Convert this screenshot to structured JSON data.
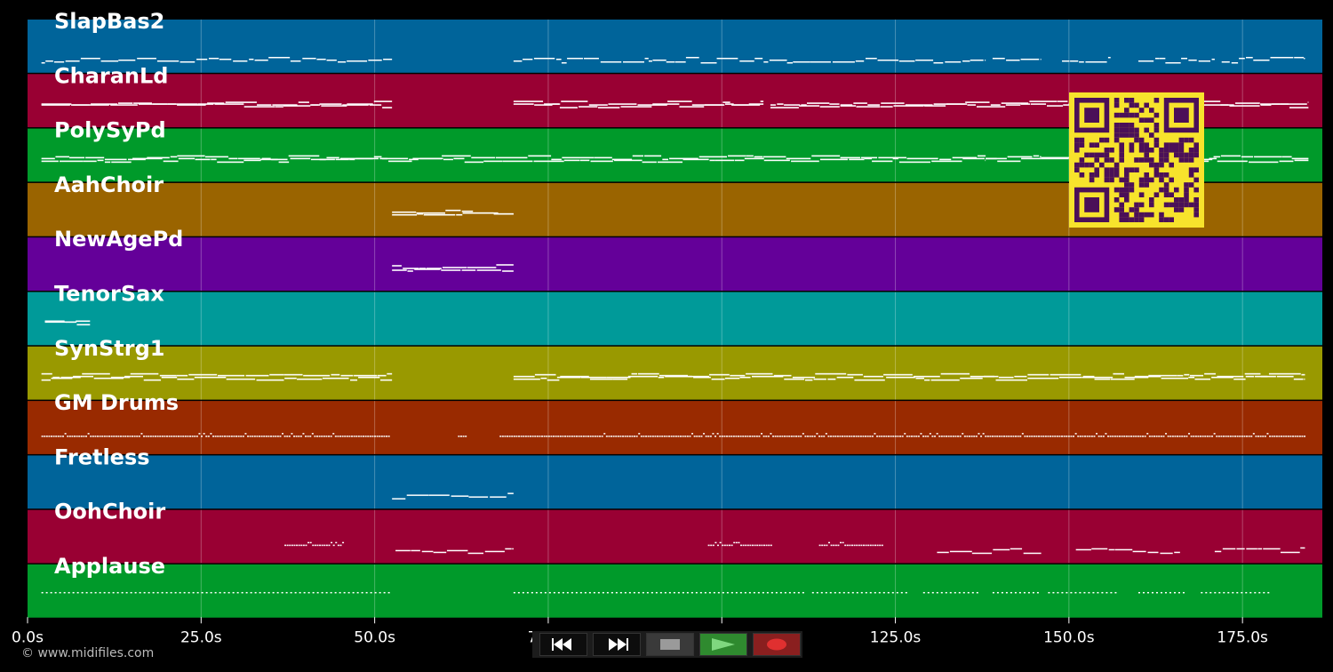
{
  "timeline": {
    "duration_s": 186.5,
    "ticks": [
      {
        "t": 0,
        "label": "0.0s"
      },
      {
        "t": 25,
        "label": "25.0s"
      },
      {
        "t": 50,
        "label": "50.0s"
      },
      {
        "t": 75,
        "label": "75.0s"
      },
      {
        "t": 100,
        "label": "100.0s"
      },
      {
        "t": 125,
        "label": "125.0s"
      },
      {
        "t": 150,
        "label": "150.0s"
      },
      {
        "t": 175,
        "label": "175.0s"
      }
    ]
  },
  "tracks": [
    {
      "name": "SlapBas2",
      "color": "#00649a",
      "segments": [
        [
          2,
          52.5,
          "line"
        ],
        [
          70,
          92,
          "line"
        ],
        [
          92,
          138,
          "line"
        ],
        [
          139,
          146,
          "line"
        ],
        [
          149,
          156,
          "line"
        ],
        [
          160,
          171,
          "line"
        ],
        [
          172,
          184,
          "line"
        ]
      ]
    },
    {
      "name": "CharanLd",
      "color": "#990033",
      "segments": [
        [
          2,
          46,
          "dense"
        ],
        [
          46,
          52.5,
          "dense"
        ],
        [
          70,
          106,
          "dense"
        ],
        [
          107,
          150,
          "dense"
        ],
        [
          150,
          184.5,
          "dense"
        ]
      ]
    },
    {
      "name": "PolySyPd",
      "color": "#009a2a",
      "segments": [
        [
          2,
          138,
          "dense"
        ],
        [
          138,
          146,
          "dense"
        ],
        [
          146,
          184.5,
          "dense"
        ]
      ]
    },
    {
      "name": "AahChoir",
      "color": "#9a6400",
      "segments": [
        [
          52.5,
          70,
          "dense"
        ]
      ]
    },
    {
      "name": "NewAgePd",
      "color": "#640099",
      "segments": [
        [
          52.5,
          70,
          "dense"
        ]
      ]
    },
    {
      "name": "TenorSax",
      "color": "#009a99",
      "segments": [
        [
          2.5,
          9,
          "dense"
        ]
      ]
    },
    {
      "name": "SynStrg1",
      "color": "#999900",
      "segments": [
        [
          2,
          52.5,
          "dense"
        ],
        [
          70,
          184,
          "dense"
        ]
      ]
    },
    {
      "name": "GM Drums",
      "color": "#992a00",
      "segments": [
        [
          2,
          52,
          "dots"
        ],
        [
          62,
          63,
          "dots"
        ],
        [
          68,
          184,
          "dots"
        ]
      ]
    },
    {
      "name": "Fretless",
      "color": "#00649a",
      "segments": [
        [
          52.5,
          70,
          "line"
        ]
      ]
    },
    {
      "name": "OohChoir",
      "color": "#990033",
      "segments": [
        [
          37,
          45.5,
          "dots"
        ],
        [
          53,
          70,
          "line"
        ],
        [
          98,
          107,
          "dots"
        ],
        [
          114,
          123,
          "dots"
        ],
        [
          131,
          146,
          "line"
        ],
        [
          151,
          166,
          "line"
        ],
        [
          171,
          184,
          "line"
        ]
      ]
    },
    {
      "name": "Applause",
      "color": "#009a2a",
      "segments": [
        [
          2,
          52.5,
          "sparse"
        ],
        [
          70,
          112,
          "sparse"
        ],
        [
          113,
          127,
          "sparse"
        ],
        [
          129,
          137,
          "sparse"
        ],
        [
          139,
          146,
          "sparse"
        ],
        [
          147,
          157,
          "sparse"
        ],
        [
          160,
          167,
          "sparse"
        ],
        [
          169,
          179,
          "sparse"
        ]
      ]
    }
  ],
  "transport": {
    "rewind_icon": "rewind-icon",
    "forward_icon": "fast-forward-icon",
    "stop_icon": "stop-icon",
    "play_icon": "play-icon",
    "record_icon": "record-icon",
    "play_color": "#2f8a2f",
    "record_color": "#8a1f1f"
  },
  "footer": {
    "copyright": "© www.midifiles.com"
  }
}
